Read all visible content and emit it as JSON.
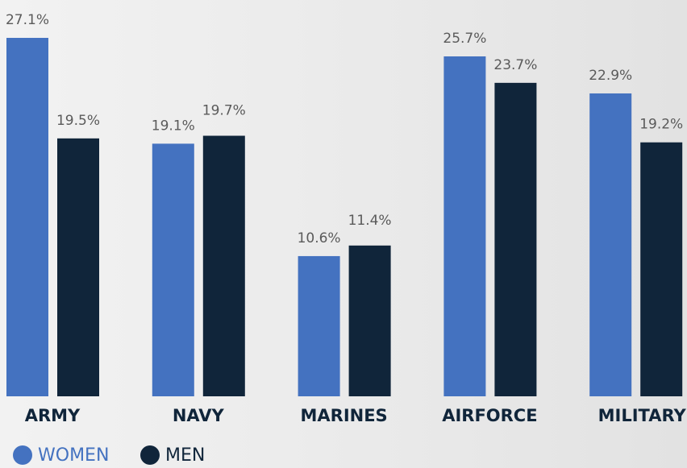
{
  "chart_data": {
    "type": "bar",
    "categories": [
      "ARMY",
      "NAVY",
      "MARINES",
      "AIRFORCE",
      "MILITARY"
    ],
    "series": [
      {
        "name": "WOMEN",
        "color": "#4472c0",
        "values": [
          27.1,
          19.1,
          10.6,
          25.7,
          22.9
        ],
        "value_labels": [
          "27.1%",
          "19.1%",
          "10.6%",
          "25.7%",
          "22.9%"
        ]
      },
      {
        "name": "MEN",
        "color": "#10253a",
        "values": [
          19.5,
          19.7,
          11.4,
          23.7,
          19.2
        ],
        "value_labels": [
          "19.5%",
          "19.7%",
          "11.4%",
          "23.7%",
          "19.2%"
        ]
      }
    ],
    "legend": "bottom-left"
  }
}
